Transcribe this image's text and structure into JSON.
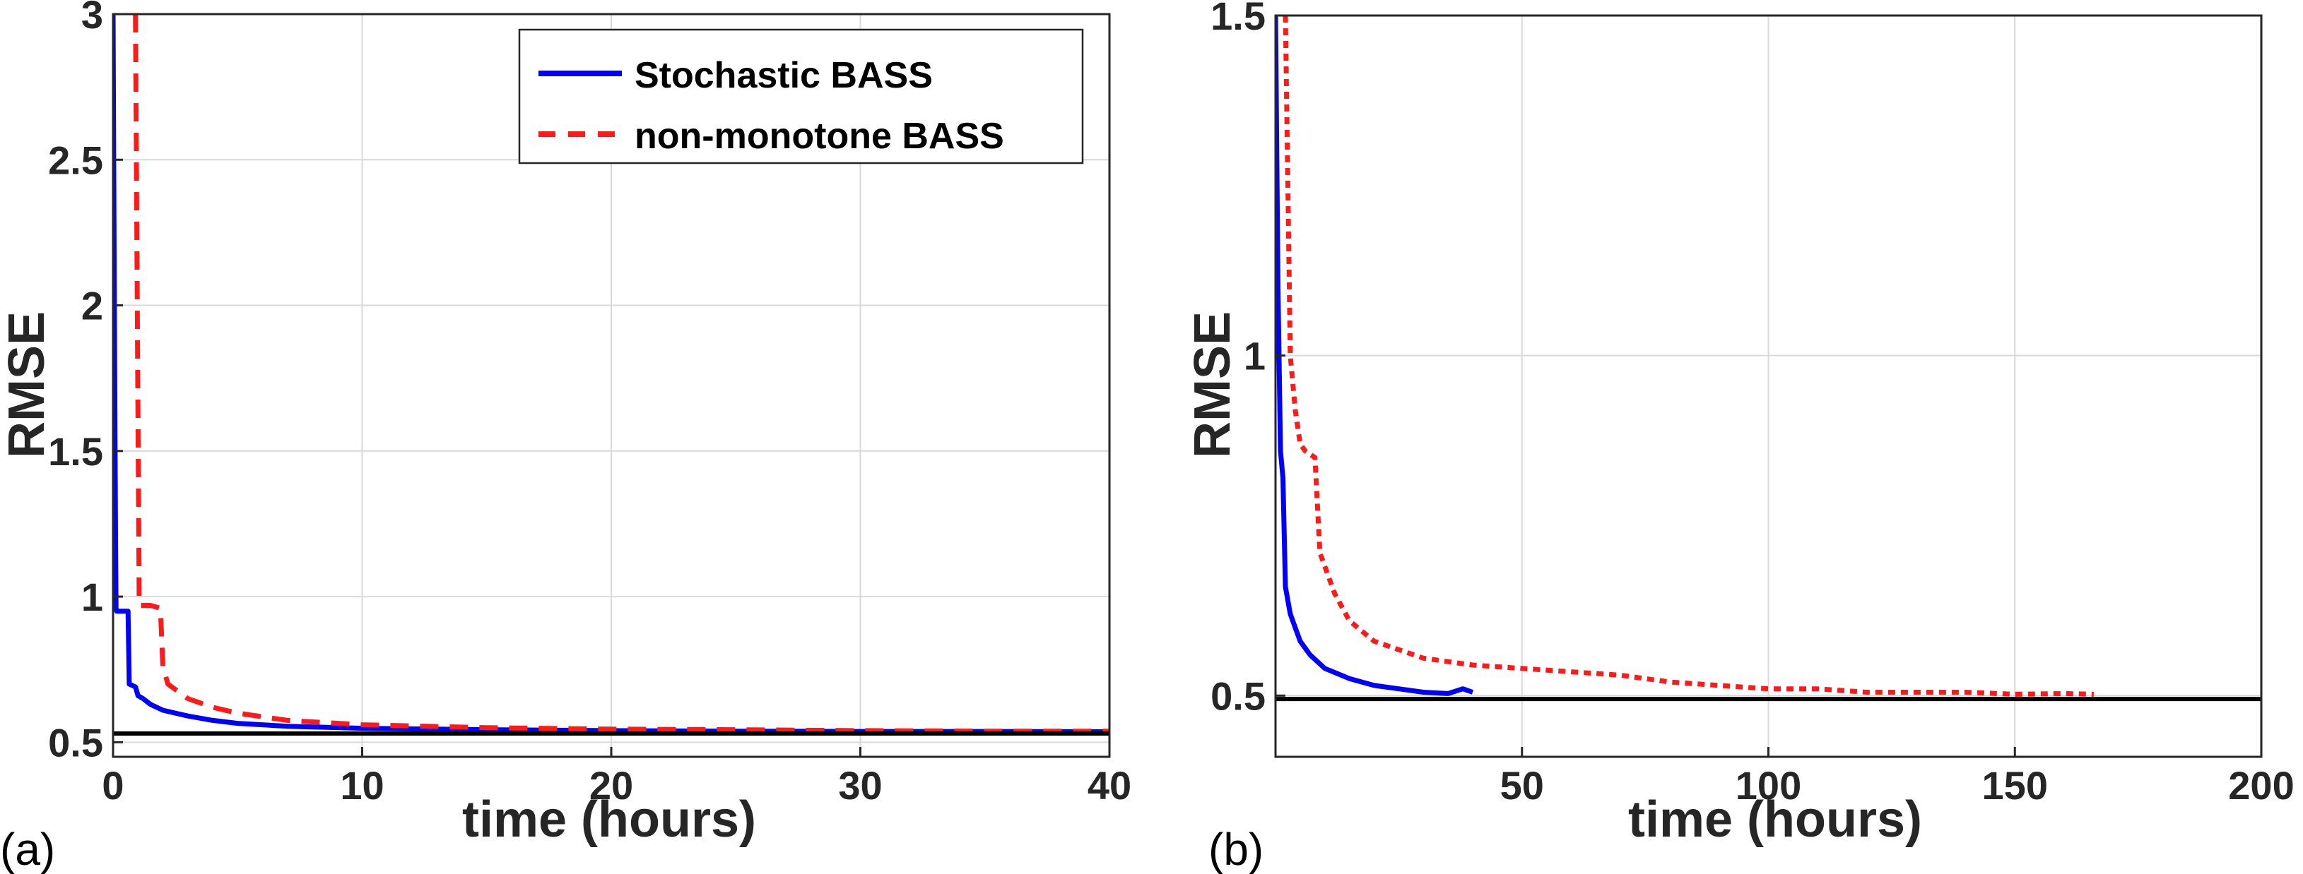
{
  "colors": {
    "stochastic": "#0000ff",
    "nonmonotone": "#ff1a1a",
    "reference": "#000000"
  },
  "chart_data": [
    {
      "type": "line",
      "panel_label": "(a)",
      "xlabel": "time (hours)",
      "ylabel": "RMSE",
      "xlim": [
        0,
        40
      ],
      "ylim": [
        0.45,
        3
      ],
      "xticks": [
        0,
        10,
        20,
        30,
        40
      ],
      "xtick_labels": [
        "0",
        "10",
        "20",
        "30",
        "40"
      ],
      "yticks": [
        0.5,
        1,
        1.5,
        2,
        2.5,
        3
      ],
      "ytick_labels": [
        "0.5",
        "1",
        "1.5",
        "2",
        "2.5",
        "3"
      ],
      "grid": true,
      "legend_position": "top-right",
      "reference_line": 0.53,
      "series": [
        {
          "name": "Stochastic BASS",
          "style": "solid",
          "x": [
            0,
            0.05,
            0.1,
            0.12,
            0.15,
            0.6,
            0.65,
            0.9,
            1.0,
            1.2,
            1.5,
            2,
            2.5,
            3,
            4,
            5,
            7,
            10,
            15,
            20,
            25,
            30,
            35,
            40
          ],
          "y": [
            3,
            2.0,
            1.2,
            0.96,
            0.95,
            0.95,
            0.7,
            0.69,
            0.66,
            0.65,
            0.63,
            0.61,
            0.6,
            0.59,
            0.575,
            0.565,
            0.555,
            0.548,
            0.543,
            0.54,
            0.538,
            0.537,
            0.537,
            0.536
          ]
        },
        {
          "name": "non-monotone BASS",
          "style": "dashed",
          "x": [
            0.9,
            1.0,
            1.05,
            1.5,
            1.9,
            2.0,
            2.2,
            3,
            4,
            5,
            7,
            10,
            15,
            20,
            25,
            30,
            35,
            40
          ],
          "y": [
            3,
            1.6,
            0.97,
            0.97,
            0.96,
            0.76,
            0.7,
            0.65,
            0.62,
            0.6,
            0.575,
            0.56,
            0.55,
            0.545,
            0.543,
            0.54,
            0.538,
            0.538
          ]
        }
      ]
    },
    {
      "type": "line",
      "panel_label": "(b)",
      "xlabel": "time (hours)",
      "ylabel": "RMSE",
      "xlim": [
        0,
        200
      ],
      "ylim": [
        0.41,
        1.5
      ],
      "xticks": [
        50,
        100,
        150,
        200
      ],
      "xtick_labels": [
        "50",
        "100",
        "150",
        "200"
      ],
      "yticks": [
        0.5,
        1,
        1.5
      ],
      "ytick_labels": [
        "0.5",
        "1",
        "1.5"
      ],
      "grid": true,
      "reference_line": 0.495,
      "series": [
        {
          "name": "Stochastic BASS",
          "style": "solid",
          "x": [
            0,
            0.5,
            1,
            1.5,
            2,
            3,
            4,
            5,
            7,
            10,
            15,
            20,
            25,
            30,
            35,
            38,
            40
          ],
          "y": [
            1.5,
            1.1,
            0.86,
            0.82,
            0.66,
            0.62,
            0.6,
            0.58,
            0.56,
            0.54,
            0.525,
            0.515,
            0.51,
            0.505,
            0.503,
            0.51,
            0.505
          ]
        },
        {
          "name": "non-monotone BASS",
          "style": "dotted",
          "x": [
            2,
            3,
            4,
            5,
            6,
            8,
            9,
            10,
            12,
            15,
            20,
            30,
            40,
            50,
            60,
            70,
            80,
            90,
            100,
            110,
            120,
            130,
            140,
            150,
            160,
            166
          ],
          "y": [
            1.5,
            1.0,
            0.92,
            0.87,
            0.86,
            0.85,
            0.71,
            0.69,
            0.65,
            0.61,
            0.58,
            0.555,
            0.545,
            0.54,
            0.535,
            0.53,
            0.52,
            0.515,
            0.51,
            0.51,
            0.505,
            0.505,
            0.505,
            0.502,
            0.503,
            0.502
          ]
        }
      ]
    }
  ]
}
